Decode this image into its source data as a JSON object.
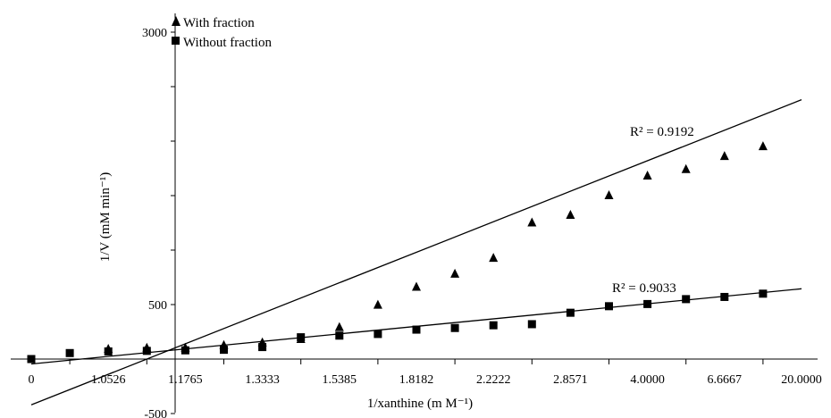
{
  "chart_data": {
    "type": "scatter",
    "xlabel": "1/xanthine (m M⁻¹)",
    "ylabel": "1/V (mM min⁻¹)",
    "x_tick_labels": [
      "0",
      "1.0526",
      "1.1765",
      "1.3333",
      "1.5385",
      "1.8182",
      "2.2222",
      "2.8571",
      "4.0000",
      "6.6667",
      "20.0000"
    ],
    "y_tick_labels": [
      "-500",
      "500",
      "3000"
    ],
    "y_tick_values": [
      -500,
      500,
      3000
    ],
    "ylim": [
      -500,
      3000
    ],
    "x_positions": [
      0,
      1,
      2,
      3,
      4,
      5,
      6,
      7,
      8,
      9,
      10
    ],
    "xlim": [
      0,
      10
    ],
    "series": [
      {
        "name": "With fraction",
        "marker": "triangle",
        "x": [
          1,
          1.5,
          2,
          2.5,
          3,
          3.5,
          4,
          4.5,
          5,
          5.5,
          6,
          6.5,
          7,
          7.5,
          8,
          8.5,
          9,
          9.5
        ],
        "y": [
          90,
          100,
          100,
          125,
          150,
          180,
          290,
          495,
          660,
          780,
          925,
          1250,
          1320,
          1500,
          1680,
          1740,
          1860,
          1950
        ]
      },
      {
        "name": "Without fraction",
        "marker": "square",
        "x": [
          0,
          0.5,
          1,
          1.5,
          2,
          2.5,
          3,
          3.5,
          4,
          4.5,
          5,
          5.5,
          6,
          6.5,
          7,
          7.5,
          8,
          8.5,
          9,
          9.5
        ],
        "y": [
          0,
          55,
          70,
          75,
          80,
          85,
          110,
          200,
          215,
          230,
          270,
          285,
          310,
          320,
          425,
          485,
          505,
          550,
          570,
          600
        ]
      }
    ],
    "trendlines": [
      {
        "series": "With fraction",
        "x": [
          0,
          10
        ],
        "y": [
          -420,
          2380
        ],
        "r2_label": "R² = 0.9192"
      },
      {
        "series": "Without fraction",
        "x": [
          0,
          10
        ],
        "y": [
          -45,
          645
        ],
        "r2_label": "R² = 0.9033"
      }
    ],
    "legend_position": "top-left",
    "grid": false
  },
  "colors": {
    "marker": "#000000",
    "line": "#000000",
    "background": "#ffffff"
  }
}
